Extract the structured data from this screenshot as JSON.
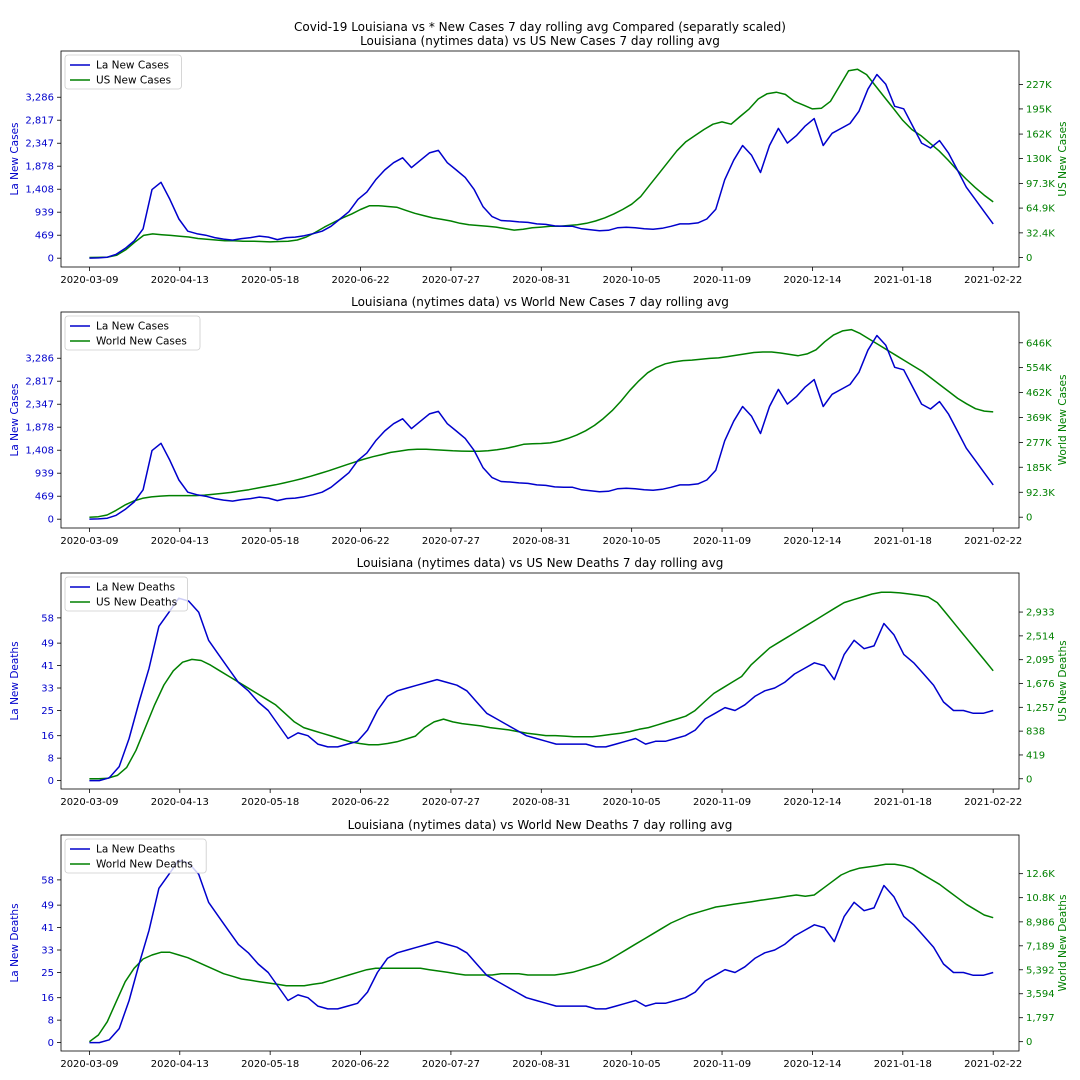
{
  "figure": {
    "suptitle": "Covid-19 Louisiana vs * New Cases 7 day rolling avg Compared (separatly scaled)"
  },
  "x_tick_labels": [
    "2020-03-09",
    "2020-04-13",
    "2020-05-18",
    "2020-06-22",
    "2020-07-27",
    "2020-08-31",
    "2020-10-05",
    "2020-11-09",
    "2020-12-14",
    "2021-01-18",
    "2021-02-22"
  ],
  "colors": {
    "left": "#0000cc",
    "right": "#008000"
  },
  "chart_data": [
    {
      "type": "line",
      "title": "Louisiana (nytimes data) vs US New Cases 7 day rolling avg",
      "x_start": "2020-03-09",
      "x_end": "2021-02-22",
      "xlim": [
        "2020-02-27",
        "2021-03-04"
      ],
      "xticks": [
        "2020-03-09",
        "2020-04-13",
        "2020-05-18",
        "2020-06-22",
        "2020-07-27",
        "2020-08-31",
        "2020-10-05",
        "2020-11-09",
        "2020-12-14",
        "2021-01-18",
        "2021-02-22"
      ],
      "legend_position": "upper-left",
      "left_axis": {
        "label": "La New Cases",
        "ylim": [
          -180,
          4230
        ],
        "ticks": [
          0,
          469,
          939,
          1408,
          1878,
          2347,
          2817,
          3286
        ],
        "tick_labels": [
          "0",
          "469",
          "939",
          "1,408",
          "1,878",
          "2,347",
          "2,817",
          "3,286"
        ],
        "series_name": "La New Cases",
        "values": [
          2,
          6,
          20,
          80,
          200,
          350,
          600,
          1400,
          1550,
          1200,
          800,
          550,
          500,
          470,
          420,
          390,
          370,
          400,
          420,
          450,
          430,
          380,
          420,
          430,
          460,
          500,
          550,
          650,
          800,
          950,
          1200,
          1350,
          1600,
          1800,
          1950,
          2050,
          1850,
          2000,
          2150,
          2200,
          1950,
          1800,
          1650,
          1400,
          1050,
          850,
          770,
          760,
          740,
          730,
          700,
          690,
          660,
          650,
          650,
          600,
          580,
          560,
          570,
          620,
          630,
          620,
          600,
          590,
          610,
          650,
          700,
          700,
          720,
          800,
          1000,
          1600,
          2000,
          2300,
          2100,
          1750,
          2300,
          2650,
          2350,
          2500,
          2700,
          2850,
          2300,
          2550,
          2650,
          2750,
          3000,
          3450,
          3750,
          3550,
          3100,
          3050,
          2700,
          2350,
          2250,
          2400,
          2150,
          1800,
          1450,
          1200,
          950,
          700
        ]
      },
      "right_axis": {
        "label": "US New Cases",
        "ylim": [
          -12400,
          271000
        ],
        "ticks": [
          0,
          32400,
          64900,
          97300,
          130000,
          162000,
          195000,
          227000
        ],
        "tick_labels": [
          "0",
          "32.4K",
          "64.9K",
          "97.3K",
          "130K",
          "162K",
          "195K",
          "227K"
        ],
        "series_name": "US New Cases",
        "values": [
          0,
          150,
          600,
          3000,
          10000,
          20000,
          29000,
          31000,
          30000,
          29000,
          28000,
          27000,
          25000,
          24000,
          23000,
          22000,
          22000,
          21500,
          21500,
          21000,
          20500,
          21000,
          21500,
          23000,
          27000,
          33000,
          40000,
          46000,
          52000,
          57000,
          63000,
          68000,
          68000,
          67000,
          66000,
          62000,
          58000,
          55000,
          52000,
          50000,
          48000,
          45000,
          43000,
          42000,
          41000,
          40000,
          38000,
          36000,
          37000,
          39000,
          40000,
          41000,
          41000,
          42000,
          43000,
          45000,
          48000,
          52000,
          57000,
          63000,
          70000,
          80000,
          95000,
          110000,
          125000,
          140000,
          152000,
          160000,
          168000,
          175000,
          178000,
          175000,
          185000,
          195000,
          208000,
          215000,
          217000,
          214000,
          205000,
          200000,
          195000,
          196000,
          205000,
          225000,
          245000,
          247000,
          240000,
          225000,
          210000,
          195000,
          180000,
          168000,
          160000,
          150000,
          140000,
          128000,
          115000,
          103000,
          92000,
          82000,
          73000
        ]
      }
    },
    {
      "type": "line",
      "title": "Louisiana (nytimes data) vs World New Cases 7 day rolling avg",
      "x_start": "2020-03-09",
      "x_end": "2021-02-22",
      "xlim": [
        "2020-02-27",
        "2021-03-04"
      ],
      "xticks": [
        "2020-03-09",
        "2020-04-13",
        "2020-05-18",
        "2020-06-22",
        "2020-07-27",
        "2020-08-31",
        "2020-10-05",
        "2020-11-09",
        "2020-12-14",
        "2021-01-18",
        "2021-02-22"
      ],
      "legend_position": "upper-left",
      "left_axis": {
        "label": "La New Cases",
        "ylim": [
          -180,
          4230
        ],
        "ticks": [
          0,
          469,
          939,
          1408,
          1878,
          2347,
          2817,
          3286
        ],
        "tick_labels": [
          "0",
          "469",
          "939",
          "1,408",
          "1,878",
          "2,347",
          "2,817",
          "3,286"
        ],
        "series_name": "La New Cases",
        "values": [
          2,
          6,
          20,
          80,
          200,
          350,
          600,
          1400,
          1550,
          1200,
          800,
          550,
          500,
          470,
          420,
          390,
          370,
          400,
          420,
          450,
          430,
          380,
          420,
          430,
          460,
          500,
          550,
          650,
          800,
          950,
          1200,
          1350,
          1600,
          1800,
          1950,
          2050,
          1850,
          2000,
          2150,
          2200,
          1950,
          1800,
          1650,
          1400,
          1050,
          850,
          770,
          760,
          740,
          730,
          700,
          690,
          660,
          650,
          650,
          600,
          580,
          560,
          570,
          620,
          630,
          620,
          600,
          590,
          610,
          650,
          700,
          700,
          720,
          800,
          1000,
          1600,
          2000,
          2300,
          2100,
          1750,
          2300,
          2650,
          2350,
          2500,
          2700,
          2850,
          2300,
          2550,
          2650,
          2750,
          3000,
          3450,
          3750,
          3550,
          3100,
          3050,
          2700,
          2350,
          2250,
          2400,
          2150,
          1800,
          1450,
          1200,
          950,
          700
        ]
      },
      "right_axis": {
        "label": "World New Cases",
        "ylim": [
          -40000,
          760000
        ],
        "ticks": [
          0,
          92300,
          185000,
          277000,
          369000,
          462000,
          554000,
          646000
        ],
        "tick_labels": [
          "0",
          "92.3K",
          "185K",
          "277K",
          "369K",
          "462K",
          "554K",
          "646K"
        ],
        "series_name": "World New Cases",
        "values": [
          0,
          2000,
          8000,
          25000,
          45000,
          60000,
          70000,
          75000,
          78000,
          80000,
          80000,
          80000,
          80000,
          82000,
          85000,
          88000,
          92000,
          97000,
          102000,
          108000,
          114000,
          120000,
          127000,
          135000,
          143000,
          152000,
          162000,
          172000,
          183000,
          194000,
          205000,
          215000,
          224000,
          232000,
          240000,
          245000,
          250000,
          252000,
          252000,
          250000,
          248000,
          246000,
          245000,
          244000,
          244000,
          246000,
          250000,
          255000,
          262000,
          270000,
          272000,
          273000,
          275000,
          282000,
          292000,
          304000,
          320000,
          340000,
          365000,
          395000,
          430000,
          470000,
          505000,
          535000,
          555000,
          568000,
          575000,
          580000,
          582000,
          585000,
          588000,
          590000,
          595000,
          600000,
          605000,
          610000,
          612000,
          612000,
          608000,
          603000,
          598000,
          605000,
          620000,
          650000,
          675000,
          690000,
          695000,
          680000,
          660000,
          640000,
          620000,
          600000,
          580000,
          560000,
          540000,
          515000,
          490000,
          465000,
          440000,
          420000,
          402000,
          393000,
          390000
        ]
      }
    },
    {
      "type": "line",
      "title": "Louisiana (nytimes data) vs US New Deaths 7 day rolling avg",
      "x_start": "2020-03-09",
      "x_end": "2021-02-22",
      "xlim": [
        "2020-02-27",
        "2021-03-04"
      ],
      "xticks": [
        "2020-03-09",
        "2020-04-13",
        "2020-05-18",
        "2020-06-22",
        "2020-07-27",
        "2020-08-31",
        "2020-10-05",
        "2020-11-09",
        "2020-12-14",
        "2021-01-18",
        "2021-02-22"
      ],
      "legend_position": "upper-left",
      "left_axis": {
        "label": "La New Deaths",
        "ylim": [
          -3,
          74
        ],
        "ticks": [
          0,
          8,
          16,
          25,
          33,
          41,
          49,
          58
        ],
        "tick_labels": [
          "0",
          "8",
          "16",
          "25",
          "33",
          "41",
          "49",
          "58"
        ],
        "series_name": "La New Deaths",
        "values": [
          0,
          0,
          1,
          5,
          15,
          28,
          40,
          55,
          60,
          65,
          64,
          60,
          50,
          45,
          40,
          35,
          32,
          28,
          25,
          20,
          15,
          17,
          16,
          13,
          12,
          12,
          13,
          14,
          18,
          25,
          30,
          32,
          33,
          34,
          35,
          36,
          35,
          34,
          32,
          28,
          24,
          22,
          20,
          18,
          16,
          15,
          14,
          13,
          13,
          13,
          13,
          12,
          12,
          13,
          14,
          15,
          13,
          14,
          14,
          15,
          16,
          18,
          22,
          24,
          26,
          25,
          27,
          30,
          32,
          33,
          35,
          38,
          40,
          42,
          41,
          36,
          45,
          50,
          47,
          48,
          56,
          52,
          45,
          42,
          38,
          34,
          28,
          25,
          25,
          24,
          24,
          25
        ]
      },
      "right_axis": {
        "label": "US New Deaths",
        "ylim": [
          -180,
          3620
        ],
        "ticks": [
          0,
          419,
          838,
          1257,
          1676,
          2095,
          2514,
          2933
        ],
        "tick_labels": [
          "0",
          "419",
          "838",
          "1,257",
          "1,676",
          "2,095",
          "2,514",
          "2,933"
        ],
        "series_name": "US New Deaths",
        "values": [
          0,
          0,
          10,
          60,
          200,
          500,
          900,
          1300,
          1650,
          1900,
          2050,
          2100,
          2080,
          2000,
          1900,
          1800,
          1700,
          1600,
          1500,
          1400,
          1300,
          1150,
          1000,
          900,
          850,
          800,
          750,
          700,
          650,
          620,
          600,
          600,
          620,
          650,
          700,
          750,
          900,
          1000,
          1050,
          1000,
          970,
          950,
          930,
          900,
          880,
          860,
          830,
          800,
          780,
          760,
          760,
          750,
          740,
          740,
          740,
          760,
          780,
          800,
          830,
          870,
          900,
          950,
          1000,
          1050,
          1100,
          1200,
          1350,
          1500,
          1600,
          1700,
          1800,
          2000,
          2150,
          2300,
          2400,
          2500,
          2600,
          2700,
          2800,
          2900,
          3000,
          3100,
          3150,
          3200,
          3250,
          3280,
          3280,
          3270,
          3250,
          3230,
          3200,
          3100,
          2900,
          2700,
          2500,
          2300,
          2100,
          1900
        ]
      }
    },
    {
      "type": "line",
      "title": "Louisiana (nytimes data) vs World New Deaths 7 day rolling avg",
      "x_start": "2020-03-09",
      "x_end": "2021-02-22",
      "xlim": [
        "2020-02-27",
        "2021-03-04"
      ],
      "xticks": [
        "2020-03-09",
        "2020-04-13",
        "2020-05-18",
        "2020-06-22",
        "2020-07-27",
        "2020-08-31",
        "2020-10-05",
        "2020-11-09",
        "2020-12-14",
        "2021-01-18",
        "2021-02-22"
      ],
      "legend_position": "upper-left",
      "left_axis": {
        "label": "La New Deaths",
        "ylim": [
          -3,
          74
        ],
        "ticks": [
          0,
          8,
          16,
          25,
          33,
          41,
          49,
          58
        ],
        "tick_labels": [
          "0",
          "8",
          "16",
          "25",
          "33",
          "41",
          "49",
          "58"
        ],
        "series_name": "La New Deaths",
        "values": [
          0,
          0,
          1,
          5,
          15,
          28,
          40,
          55,
          60,
          65,
          64,
          60,
          50,
          45,
          40,
          35,
          32,
          28,
          25,
          20,
          15,
          17,
          16,
          13,
          12,
          12,
          13,
          14,
          18,
          25,
          30,
          32,
          33,
          34,
          35,
          36,
          35,
          34,
          32,
          28,
          24,
          22,
          20,
          18,
          16,
          15,
          14,
          13,
          13,
          13,
          13,
          12,
          12,
          13,
          14,
          15,
          13,
          14,
          14,
          15,
          16,
          18,
          22,
          24,
          26,
          25,
          27,
          30,
          32,
          33,
          35,
          38,
          40,
          42,
          41,
          36,
          45,
          50,
          47,
          48,
          56,
          52,
          45,
          42,
          38,
          34,
          28,
          25,
          25,
          24,
          24,
          25
        ]
      },
      "right_axis": {
        "label": "World New Deaths",
        "ylim": [
          -700,
          15500
        ],
        "ticks": [
          0,
          1797,
          3594,
          5392,
          7189,
          8986,
          10800,
          12600
        ],
        "tick_labels": [
          "0",
          "1,797",
          "3,594",
          "5,392",
          "7,189",
          "8,986",
          "10.8K",
          "12.6K"
        ],
        "series_name": "World New Deaths",
        "values": [
          0,
          500,
          1500,
          3000,
          4500,
          5500,
          6200,
          6500,
          6700,
          6700,
          6500,
          6300,
          6000,
          5700,
          5400,
          5100,
          4900,
          4700,
          4600,
          4500,
          4400,
          4300,
          4200,
          4200,
          4200,
          4300,
          4400,
          4600,
          4800,
          5000,
          5200,
          5400,
          5500,
          5500,
          5500,
          5500,
          5500,
          5500,
          5400,
          5300,
          5200,
          5100,
          5000,
          5000,
          5000,
          5000,
          5100,
          5100,
          5100,
          5000,
          5000,
          5000,
          5000,
          5100,
          5200,
          5400,
          5600,
          5800,
          6100,
          6500,
          6900,
          7300,
          7700,
          8100,
          8500,
          8900,
          9200,
          9500,
          9700,
          9900,
          10100,
          10200,
          10300,
          10400,
          10500,
          10600,
          10700,
          10800,
          10900,
          11000,
          10900,
          11000,
          11500,
          12000,
          12500,
          12800,
          13000,
          13100,
          13200,
          13300,
          13300,
          13200,
          13000,
          12600,
          12200,
          11800,
          11300,
          10800,
          10300,
          9900,
          9500,
          9300
        ]
      }
    }
  ]
}
